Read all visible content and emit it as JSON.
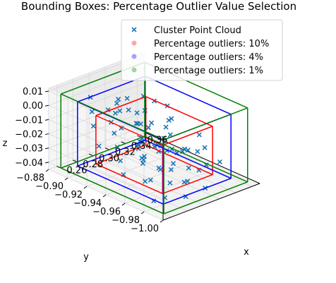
{
  "chart_data": {
    "type": "scatter",
    "title": "Bounding Boxes: Percentage Outlier Value Selection",
    "xlabel": "x",
    "ylabel": "y",
    "zlabel": "z",
    "xlim": [
      0.25,
      0.37
    ],
    "ylim": [
      -1.0,
      -0.88
    ],
    "zlim": [
      -0.045,
      0.012
    ],
    "xticks": [
      "0.26",
      "0.28",
      "0.30",
      "0.32",
      "0.34",
      "0.36"
    ],
    "xtick_values": [
      0.26,
      0.28,
      0.3,
      0.32,
      0.34,
      0.36
    ],
    "yticks": [
      "−1.00",
      "−0.98",
      "−0.96",
      "−0.94",
      "−0.92",
      "−0.90",
      "−0.88"
    ],
    "ytick_values": [
      -1.0,
      -0.98,
      -0.96,
      -0.94,
      -0.92,
      -0.9,
      -0.88
    ],
    "zticks": [
      "0.01",
      "0.00",
      "−0.01",
      "−0.02",
      "−0.03",
      "−0.04"
    ],
    "ztick_values": [
      0.01,
      0.0,
      -0.01,
      -0.02,
      -0.03,
      -0.04
    ],
    "legend_position": "top-right",
    "legend": [
      {
        "label": "Cluster Point Cloud",
        "marker": "x",
        "color": "#1f77b4"
      },
      {
        "label": "Percentage outliers: 10%",
        "marker": "o",
        "color": "#ff0000"
      },
      {
        "label": "Percentage outliers: 4%",
        "marker": "o",
        "color": "#0000ff"
      },
      {
        "label": "Percentage outliers: 1%",
        "marker": "o",
        "color": "#008000"
      }
    ],
    "boxes": [
      {
        "name": "Percentage outliers: 10%",
        "color": "#ff0000",
        "x": [
          0.279,
          0.341
        ],
        "y": [
          -0.975,
          -0.905
        ],
        "z": [
          -0.04,
          -0.006
        ]
      },
      {
        "name": "Percentage outliers: 4%",
        "color": "#0000ff",
        "x": [
          0.268,
          0.352
        ],
        "y": [
          -0.985,
          -0.895
        ],
        "z": [
          -0.042,
          0.003
        ]
      },
      {
        "name": "Percentage outliers: 1%",
        "color": "#008000",
        "x": [
          0.258,
          0.362
        ],
        "y": [
          -0.994,
          -0.886
        ],
        "z": [
          -0.044,
          0.008
        ]
      }
    ],
    "series": [
      {
        "name": "Cluster Point Cloud",
        "marker": "x",
        "color": "#1f77b4",
        "points": [
          [
            0.262,
            -0.98,
            -0.04
          ],
          [
            0.27,
            -0.97,
            -0.03
          ],
          [
            0.275,
            -0.96,
            -0.035
          ],
          [
            0.28,
            -0.955,
            -0.02
          ],
          [
            0.285,
            -0.95,
            -0.025
          ],
          [
            0.29,
            -0.945,
            -0.03
          ],
          [
            0.295,
            -0.94,
            -0.015
          ],
          [
            0.3,
            -0.935,
            -0.02
          ],
          [
            0.305,
            -0.93,
            -0.01
          ],
          [
            0.31,
            -0.925,
            -0.025
          ],
          [
            0.315,
            -0.92,
            -0.03
          ],
          [
            0.32,
            -0.915,
            -0.035
          ],
          [
            0.325,
            -0.91,
            -0.02
          ],
          [
            0.33,
            -0.905,
            -0.015
          ],
          [
            0.335,
            -0.9,
            -0.025
          ],
          [
            0.34,
            -0.95,
            -0.03
          ],
          [
            0.345,
            -0.94,
            -0.035
          ],
          [
            0.35,
            -0.93,
            -0.04
          ],
          [
            0.355,
            -0.92,
            -0.02
          ],
          [
            0.36,
            -0.91,
            -0.03
          ],
          [
            0.265,
            -0.92,
            -0.02
          ],
          [
            0.27,
            -0.91,
            -0.01
          ],
          [
            0.28,
            -0.9,
            -0.005
          ],
          [
            0.29,
            -0.89,
            0.0
          ],
          [
            0.3,
            -0.965,
            -0.04
          ],
          [
            0.31,
            -0.975,
            -0.038
          ],
          [
            0.32,
            -0.985,
            -0.042
          ],
          [
            0.33,
            -0.97,
            -0.036
          ],
          [
            0.34,
            -0.96,
            -0.028
          ],
          [
            0.35,
            -0.975,
            -0.033
          ],
          [
            0.26,
            -0.95,
            -0.03
          ],
          [
            0.268,
            -0.94,
            -0.025
          ],
          [
            0.276,
            -0.93,
            -0.02
          ],
          [
            0.284,
            -0.92,
            -0.015
          ],
          [
            0.292,
            -0.91,
            -0.012
          ],
          [
            0.3,
            -0.9,
            -0.008
          ],
          [
            0.308,
            -0.955,
            -0.022
          ],
          [
            0.316,
            -0.945,
            -0.018
          ],
          [
            0.324,
            -0.935,
            -0.028
          ],
          [
            0.332,
            -0.925,
            -0.032
          ],
          [
            0.34,
            -0.915,
            -0.038
          ],
          [
            0.348,
            -0.905,
            -0.026
          ],
          [
            0.356,
            -0.895,
            -0.034
          ],
          [
            0.29,
            -0.99,
            -0.04
          ],
          [
            0.3,
            -0.98,
            -0.035
          ],
          [
            0.31,
            -0.96,
            -0.03
          ],
          [
            0.32,
            -0.95,
            -0.025
          ],
          [
            0.33,
            -0.94,
            -0.02
          ],
          [
            0.34,
            -0.93,
            -0.015
          ],
          [
            0.35,
            -0.92,
            -0.01
          ],
          [
            0.28,
            -0.97,
            -0.012
          ],
          [
            0.27,
            -0.985,
            -0.038
          ],
          [
            0.275,
            -0.935,
            -0.005
          ],
          [
            0.285,
            -0.925,
            0.002
          ],
          [
            0.295,
            -0.915,
            0.005
          ],
          [
            0.305,
            -0.905,
            -0.003
          ],
          [
            0.315,
            -0.895,
            -0.015
          ],
          [
            0.325,
            -0.945,
            -0.042
          ],
          [
            0.335,
            -0.955,
            -0.04
          ],
          [
            0.345,
            -0.965,
            -0.037
          ],
          [
            0.355,
            -0.955,
            -0.03
          ],
          [
            0.36,
            -0.945,
            -0.025
          ],
          [
            0.265,
            -0.965,
            -0.015
          ],
          [
            0.272,
            -0.955,
            -0.01
          ],
          [
            0.288,
            -0.965,
            -0.028
          ],
          [
            0.298,
            -0.955,
            -0.032
          ],
          [
            0.318,
            -0.965,
            -0.02
          ],
          [
            0.328,
            -0.915,
            -0.01
          ],
          [
            0.338,
            -0.905,
            -0.005
          ],
          [
            0.31,
            -0.94,
            0.008
          ],
          [
            0.3,
            -0.92,
            0.006
          ],
          [
            0.29,
            -0.93,
            0.003
          ]
        ]
      }
    ]
  }
}
